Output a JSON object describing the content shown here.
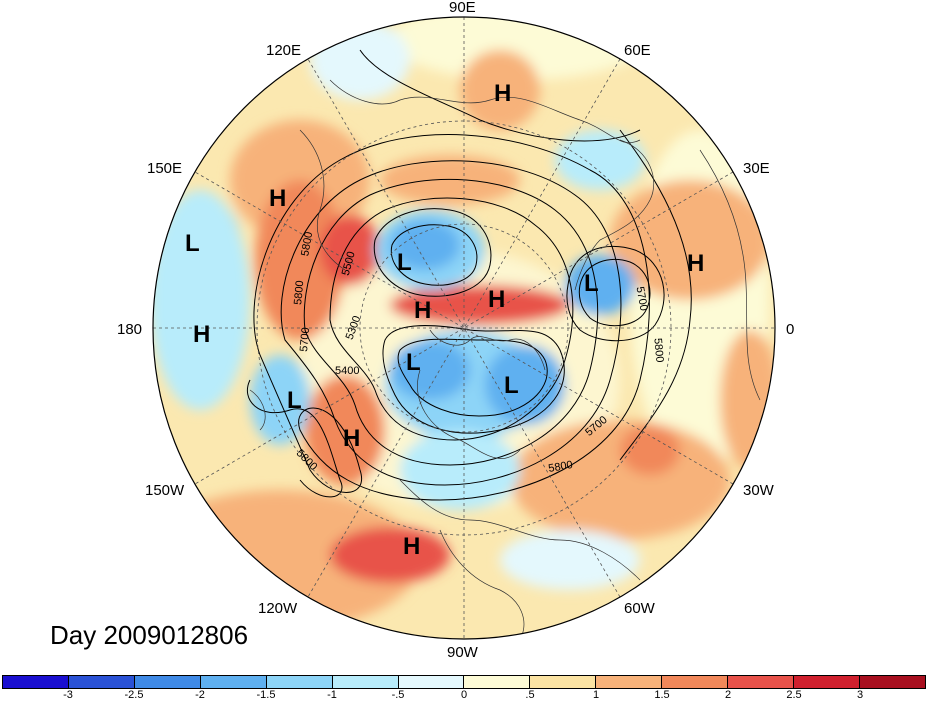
{
  "map": {
    "projection": "north-polar-stereographic",
    "longitude_labels": [
      {
        "text": "90E",
        "lon": 90
      },
      {
        "text": "60E",
        "lon": 60
      },
      {
        "text": "30E",
        "lon": 30
      },
      {
        "text": "0",
        "lon": 0
      },
      {
        "text": "30W",
        "lon": -30
      },
      {
        "text": "60W",
        "lon": -60
      },
      {
        "text": "90W",
        "lon": -90
      },
      {
        "text": "120W",
        "lon": -120
      },
      {
        "text": "150W",
        "lon": -150
      },
      {
        "text": "180",
        "lon": 180
      },
      {
        "text": "150E",
        "lon": 150
      },
      {
        "text": "120E",
        "lon": 120
      }
    ],
    "pressure_systems": [
      {
        "type": "H",
        "region": "Siberia north"
      },
      {
        "type": "H",
        "region": "Kamchatka"
      },
      {
        "type": "L",
        "region": "North Pacific west"
      },
      {
        "type": "L",
        "region": "Siberia east"
      },
      {
        "type": "H",
        "region": "Arctic Siberia"
      },
      {
        "type": "H",
        "region": "Arctic ocean"
      },
      {
        "type": "L",
        "region": "Scandinavia"
      },
      {
        "type": "H",
        "region": "Europe east"
      },
      {
        "type": "H",
        "region": "Central Pacific"
      },
      {
        "type": "L",
        "region": "Alaska north"
      },
      {
        "type": "L",
        "region": "Canada east"
      },
      {
        "type": "L",
        "region": "Gulf of Alaska"
      },
      {
        "type": "H",
        "region": "Western North America"
      },
      {
        "type": "H",
        "region": "Mexico"
      }
    ],
    "contour_labels": [
      "5800",
      "5500",
      "5800",
      "5700",
      "5300",
      "5400",
      "5800",
      "5700",
      "5700",
      "5800",
      "5800"
    ]
  },
  "title": {
    "day_text": "Day 2009012806"
  },
  "colorbar": {
    "colors": [
      "#1a0fd1",
      "#2a52d6",
      "#3f8ae6",
      "#5fb0f0",
      "#8dd4f7",
      "#b8ecfb",
      "#e4f8fd",
      "#fdfbd6",
      "#fbe3a3",
      "#f7b27a",
      "#f1885a",
      "#e8524a",
      "#d0202e",
      "#a80f1f"
    ],
    "tick_labels": [
      "-3",
      "-2.5",
      "-2",
      "-1.5",
      "-1",
      "-.5",
      "0",
      ".5",
      "1",
      "1.5",
      "2",
      "2.5",
      "3"
    ]
  }
}
